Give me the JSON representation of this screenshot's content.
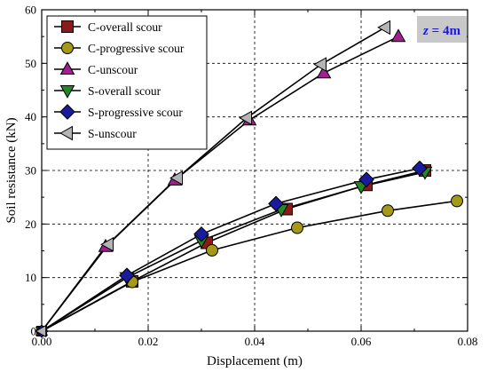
{
  "chart_data": {
    "type": "line",
    "xlabel": "Displacement (m)",
    "ylabel": "Soil resistance (kN)",
    "xlim": [
      0,
      0.08
    ],
    "ylim": [
      0,
      60
    ],
    "xticks": [
      0,
      0.02,
      0.04,
      0.06,
      0.08
    ],
    "xtick_labels": [
      "0.00",
      "0.02",
      "0.04",
      "0.06",
      "0.08"
    ],
    "yticks": [
      0,
      10,
      20,
      30,
      40,
      50,
      60
    ],
    "ytick_labels": [
      "0",
      "10",
      "20",
      "30",
      "40",
      "50",
      "60"
    ],
    "legend_position": "top-left",
    "annotation": {
      "text": "z = 4m",
      "italic_part": "z",
      "rest": " = 4m",
      "position": "top-right",
      "background": "#c8c8c8",
      "color": "#1a1ad8"
    },
    "series": [
      {
        "name": "C-overall scour",
        "marker": "square",
        "color": "#8b1a1a",
        "points": [
          [
            0,
            0
          ],
          [
            0.017,
            9.3
          ],
          [
            0.031,
            16.5
          ],
          [
            0.046,
            22.8
          ],
          [
            0.061,
            27.3
          ],
          [
            0.072,
            30.0
          ]
        ]
      },
      {
        "name": "C-progressive scour",
        "marker": "circle",
        "color": "#a59a18",
        "points": [
          [
            0,
            0
          ],
          [
            0.017,
            9.2
          ],
          [
            0.032,
            15.1
          ],
          [
            0.048,
            19.3
          ],
          [
            0.065,
            22.5
          ],
          [
            0.078,
            24.3
          ]
        ]
      },
      {
        "name": "C-unscour",
        "marker": "triangle-up",
        "color": "#a0208f",
        "points": [
          [
            0,
            0
          ],
          [
            0.012,
            15.8
          ],
          [
            0.025,
            28.2
          ],
          [
            0.039,
            39.4
          ],
          [
            0.053,
            48.2
          ],
          [
            0.067,
            55.0
          ]
        ]
      },
      {
        "name": "S-overall scour",
        "marker": "triangle-down",
        "color": "#1f8a1f",
        "points": [
          [
            0,
            0
          ],
          [
            0.016,
            10.0
          ],
          [
            0.03,
            16.9
          ],
          [
            0.045,
            22.7
          ],
          [
            0.06,
            27.0
          ],
          [
            0.072,
            29.7
          ]
        ]
      },
      {
        "name": "S-progressive scour",
        "marker": "diamond",
        "color": "#1a1a9c",
        "points": [
          [
            0,
            0
          ],
          [
            0.016,
            10.4
          ],
          [
            0.03,
            18.1
          ],
          [
            0.044,
            23.8
          ],
          [
            0.061,
            28.3
          ],
          [
            0.071,
            30.4
          ]
        ]
      },
      {
        "name": "S-unscour",
        "marker": "triangle-left",
        "color": "#b4b4b4",
        "points": [
          [
            0,
            0
          ],
          [
            0.0125,
            16.2
          ],
          [
            0.0255,
            28.6
          ],
          [
            0.0385,
            39.8
          ],
          [
            0.0525,
            49.8
          ],
          [
            0.0645,
            56.7
          ]
        ]
      }
    ]
  }
}
